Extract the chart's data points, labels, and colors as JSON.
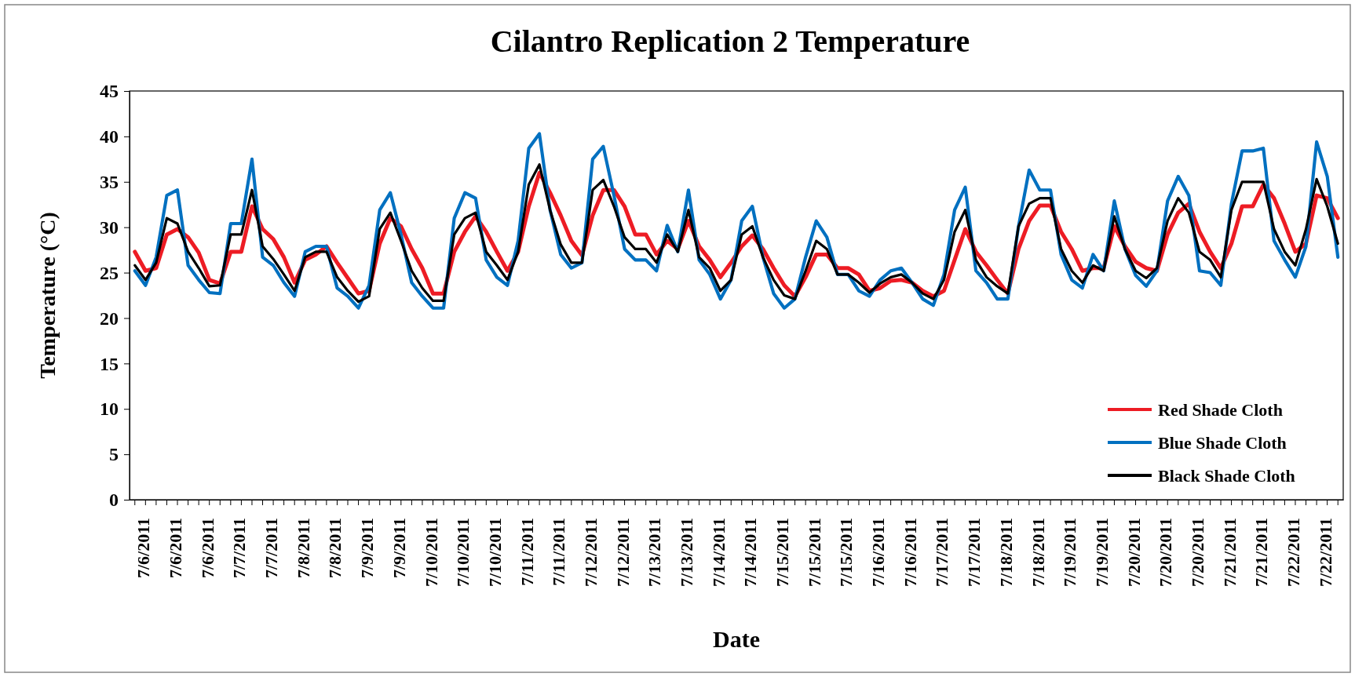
{
  "chart_data": {
    "type": "line",
    "title": "Cilantro Replication 2 Temperature",
    "xlabel": "Date",
    "ylabel": "Temperature  (°C)",
    "categories": [
      null,
      "7/6/2011",
      null,
      null,
      "7/6/2011",
      null,
      null,
      "7/6/2011",
      null,
      null,
      "7/7/2011",
      null,
      null,
      "7/7/2011",
      null,
      null,
      "7/8/2011",
      null,
      null,
      "7/8/2011",
      null,
      null,
      "7/9/2011",
      null,
      null,
      "7/9/2011",
      null,
      null,
      "7/10/2011",
      null,
      null,
      "7/10/2011",
      null,
      null,
      "7/10/2011",
      null,
      null,
      "7/11/2011",
      null,
      null,
      "7/11/2011",
      null,
      null,
      "7/12/2011",
      null,
      null,
      "7/12/2011",
      null,
      null,
      "7/13/2011",
      null,
      null,
      "7/13/2011",
      null,
      null,
      "7/14/2011",
      null,
      null,
      "7/14/2011",
      null,
      null,
      "7/15/2011",
      null,
      null,
      "7/15/2011",
      null,
      null,
      "7/15/2011",
      null,
      null,
      "7/16/2011",
      null,
      null,
      "7/16/2011",
      null,
      null,
      "7/17/2011",
      null,
      null,
      "7/17/2011",
      null,
      null,
      "7/18/2011",
      null,
      null,
      "7/18/2011",
      null,
      null,
      "7/19/2011",
      null,
      null,
      "7/19/2011",
      null,
      null,
      "7/20/2011",
      null,
      null,
      "7/20/2011",
      null,
      null,
      "7/20/2011",
      null,
      null,
      "7/21/2011",
      null,
      null,
      "7/21/2011",
      null,
      null,
      "7/22/2011",
      null,
      null,
      "7/22/2011",
      null
    ],
    "series": [
      {
        "name": "Red Shade Cloth",
        "color": "#ed1c24",
        "values": [
          27.3,
          25.2,
          25.5,
          29.2,
          29.8,
          28.9,
          27.2,
          24.2,
          23.8,
          27.3,
          27.3,
          32.3,
          29.8,
          28.7,
          26.7,
          23.9,
          26.4,
          27.0,
          27.9,
          26.1,
          24.4,
          22.7,
          23.0,
          28.2,
          31.0,
          30.1,
          27.6,
          25.5,
          22.7,
          22.7,
          27.3,
          29.5,
          31.2,
          29.5,
          27.3,
          25.2,
          27.3,
          32.3,
          36.0,
          33.8,
          31.3,
          28.5,
          26.9,
          31.3,
          34.1,
          34.1,
          32.3,
          29.2,
          29.2,
          27.0,
          28.5,
          27.6,
          30.7,
          27.9,
          26.4,
          24.5,
          26.1,
          27.9,
          29.1,
          27.6,
          25.5,
          23.6,
          22.4,
          24.5,
          27.0,
          27.0,
          25.5,
          25.5,
          24.8,
          23.0,
          23.3,
          24.1,
          24.2,
          23.9,
          23.0,
          22.4,
          23.0,
          26.4,
          29.8,
          27.3,
          25.8,
          24.2,
          22.7,
          27.6,
          30.7,
          32.4,
          32.4,
          29.5,
          27.6,
          25.2,
          25.5,
          25.5,
          30.1,
          27.9,
          26.2,
          25.5,
          25.2,
          29.2,
          31.6,
          32.6,
          29.5,
          27.3,
          25.5,
          28.2,
          32.3,
          32.3,
          34.7,
          33.2,
          30.4,
          27.3,
          28.2,
          33.5,
          33.2,
          31.0
        ]
      },
      {
        "name": "Blue Shade Cloth",
        "color": "#0070c0",
        "values": [
          25.2,
          23.6,
          26.7,
          33.5,
          34.1,
          25.8,
          24.2,
          22.8,
          22.7,
          30.4,
          30.4,
          37.5,
          26.7,
          25.8,
          23.9,
          22.4,
          27.3,
          27.9,
          27.9,
          23.3,
          22.4,
          21.1,
          23.6,
          31.9,
          33.8,
          29.2,
          23.9,
          22.4,
          21.1,
          21.1,
          31.0,
          33.8,
          33.2,
          26.4,
          24.5,
          23.6,
          28.5,
          38.7,
          40.3,
          31.9,
          27.0,
          25.5,
          26.1,
          37.5,
          38.9,
          33.5,
          27.6,
          26.4,
          26.4,
          25.2,
          30.2,
          27.3,
          34.1,
          26.4,
          24.8,
          22.1,
          24.2,
          30.7,
          32.3,
          26.7,
          22.7,
          21.1,
          22.1,
          26.7,
          30.7,
          28.9,
          24.8,
          24.8,
          23.0,
          22.4,
          24.2,
          25.2,
          25.5,
          23.9,
          22.1,
          21.4,
          24.8,
          31.9,
          34.4,
          25.2,
          23.9,
          22.1,
          22.1,
          30.1,
          36.3,
          34.1,
          34.1,
          27.0,
          24.2,
          23.3,
          27.0,
          25.2,
          32.9,
          27.6,
          24.7,
          23.5,
          25.2,
          32.9,
          35.6,
          33.5,
          25.2,
          25.0,
          23.6,
          32.6,
          38.4,
          38.4,
          38.7,
          28.5,
          26.4,
          24.5,
          27.9,
          39.4,
          35.6,
          26.7
        ]
      },
      {
        "name": "Black Shade Cloth",
        "color": "#000000",
        "values": [
          25.8,
          24.2,
          26.1,
          31.0,
          30.4,
          27.3,
          25.5,
          23.5,
          23.6,
          29.2,
          29.2,
          34.1,
          27.9,
          26.5,
          24.8,
          23.0,
          26.7,
          27.3,
          27.3,
          24.5,
          23.0,
          21.8,
          22.4,
          29.8,
          31.6,
          28.5,
          25.2,
          23.3,
          21.9,
          21.9,
          29.2,
          31.0,
          31.6,
          27.3,
          25.8,
          24.2,
          27.3,
          34.7,
          36.9,
          31.9,
          28.1,
          26.1,
          26.1,
          34.1,
          35.2,
          32.3,
          28.9,
          27.6,
          27.6,
          26.1,
          29.2,
          27.3,
          31.9,
          26.7,
          25.5,
          23.0,
          24.2,
          29.2,
          30.1,
          26.7,
          24.2,
          22.5,
          22.1,
          25.2,
          28.5,
          27.6,
          24.8,
          24.8,
          23.9,
          22.8,
          23.8,
          24.5,
          24.8,
          23.9,
          22.7,
          22.1,
          24.2,
          29.5,
          31.9,
          26.4,
          24.5,
          23.5,
          22.7,
          30.1,
          32.6,
          33.2,
          33.2,
          27.6,
          25.2,
          23.9,
          25.8,
          25.2,
          31.2,
          27.6,
          25.2,
          24.4,
          25.5,
          30.7,
          33.2,
          31.6,
          27.3,
          26.4,
          24.5,
          31.9,
          35.0,
          35.0,
          35.0,
          29.8,
          27.3,
          25.8,
          29.8,
          35.3,
          32.3,
          28.2
        ]
      }
    ],
    "ylim": [
      0,
      45
    ],
    "yticks": [
      0,
      5,
      10,
      15,
      20,
      25,
      30,
      35,
      40,
      45
    ],
    "legend": "bottom right",
    "marker": "none",
    "line_style": "solid"
  }
}
